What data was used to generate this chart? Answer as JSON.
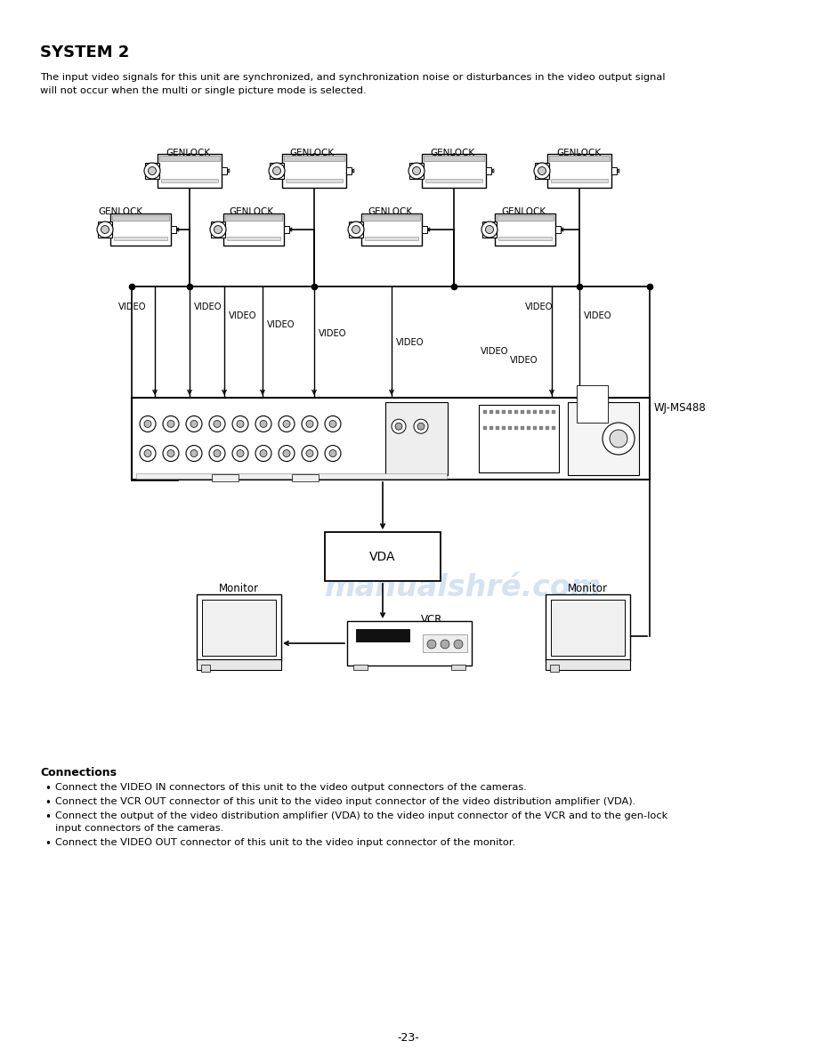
{
  "title": "SYSTEM 2",
  "subtitle": "The input video signals for this unit are synchronized, and synchronization noise or disturbances in the video output signal\nwill not occur when the multi or single picture mode is selected.",
  "wj_label": "WJ-MS488",
  "vda_label": "VDA",
  "vcr_label": "VCR",
  "connections_title": "Connections",
  "connections_bullets": [
    "Connect the VIDEO IN connectors of this unit to the video output connectors of the cameras.",
    "Connect the VCR OUT connector of this unit to the video input connector of the video distribution amplifier (VDA).",
    "Connect the output of the video distribution amplifier (VDA) to the video input connector of the VCR and to the gen-lock\n    input connectors of the cameras.",
    "Connect the VIDEO OUT connector of this unit to the video input connector of the monitor."
  ],
  "page_number": "-23-",
  "watermark": "manualshré.com",
  "bg_color": "#ffffff",
  "line_color": "#000000",
  "watermark_color": "#b8cfe8"
}
